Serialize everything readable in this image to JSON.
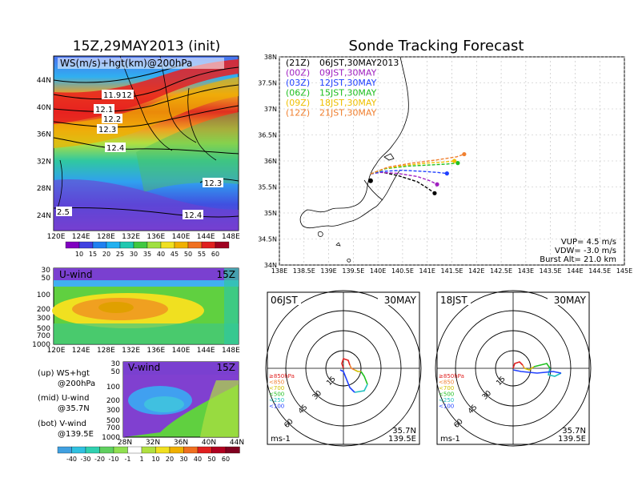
{
  "left_title": "15Z,29MAY2013 (init)",
  "right_title": "Sonde Tracking Forecast",
  "map": {
    "label": "WS(m/s)+hgt(km)@200hPa",
    "lat_ticks": [
      "44N",
      "40N",
      "36N",
      "32N",
      "28N",
      "24N"
    ],
    "lon_ticks": [
      "120E",
      "124E",
      "128E",
      "132E",
      "136E",
      "140E",
      "144E",
      "148E"
    ],
    "contour_labels": [
      "11.9",
      "12",
      "12.1",
      "12.2",
      "12.3",
      "12.4",
      "12.3",
      "12.4",
      "2.5"
    ],
    "colorbar": [
      "10",
      "15",
      "20",
      "25",
      "30",
      "35",
      "40",
      "45",
      "50",
      "55",
      "60"
    ]
  },
  "uwind": {
    "label": "U-wind",
    "time": "15Z",
    "p_ticks": [
      "30",
      "50",
      "100",
      "200",
      "300",
      "500",
      "700",
      "1000"
    ],
    "lon_ticks": [
      "120E",
      "124E",
      "128E",
      "132E",
      "136E",
      "140E",
      "144E",
      "148E"
    ]
  },
  "vwind": {
    "label": "V-wind",
    "time": "15Z",
    "p_ticks": [
      "30",
      "50",
      "100",
      "200",
      "300",
      "500",
      "700",
      "1000"
    ],
    "lat_ticks": [
      "28N",
      "32N",
      "36N",
      "40N",
      "44N"
    ]
  },
  "notes": {
    "up": "(up) WS+hgt",
    "up2": "@200hPa",
    "mid": "(mid) U-wind",
    "mid2": "@35.7N",
    "bot": "(bot) V-wind",
    "bot2": "@139.5E"
  },
  "wind_colorbar": [
    "-40",
    "-30",
    "-20",
    "-10",
    "-1",
    "1",
    "10",
    "20",
    "30",
    "40",
    "50",
    "60"
  ],
  "track": {
    "lat_ticks": [
      "38N",
      "37.5N",
      "37N",
      "36.5N",
      "36N",
      "35.5N",
      "35N",
      "34.5N",
      "34N"
    ],
    "lon_ticks": [
      "138E",
      "138.5E",
      "139E",
      "139.5E",
      "140E",
      "140.5E",
      "141E",
      "141.5E",
      "142E",
      "142.5E",
      "143E",
      "143.5E",
      "144E",
      "144.5E",
      "145E"
    ],
    "legend": [
      {
        "code": "(21Z)",
        "time": "06JST,30MAY2013",
        "color": "#000000"
      },
      {
        "code": "(00Z)",
        "time": "09JST,30MAY",
        "color": "#a020c0"
      },
      {
        "code": "(03Z)",
        "time": "12JST,30MAY",
        "color": "#2040ff"
      },
      {
        "code": "(06Z)",
        "time": "15JST,30MAY",
        "color": "#20c020"
      },
      {
        "code": "(09Z)",
        "time": "18JST,30MAY",
        "color": "#f0c000"
      },
      {
        "code": "(12Z)",
        "time": "21JST,30MAY",
        "color": "#f08030"
      }
    ],
    "vup": "VUP= 4.5 m/s",
    "vdw": "VDW= -3.0 m/s",
    "burst": "Burst Alt= 21.0 km"
  },
  "hodo_left": {
    "time": "06JST",
    "date": "30MAY",
    "lat": "35.7N",
    "lon": "139.5E",
    "unit": "ms-1",
    "ring_labels": [
      "15",
      "30",
      "45",
      "60"
    ]
  },
  "hodo_right": {
    "time": "18JST",
    "date": "30MAY",
    "lat": "35.7N",
    "lon": "139.5E",
    "unit": "ms-1",
    "ring_labels": [
      "15",
      "30",
      "45",
      "60"
    ]
  },
  "hodo_legend": [
    {
      "label": "≥850hPa",
      "color": "#e02020"
    },
    {
      "label": "<850",
      "color": "#f08030"
    },
    {
      "label": "<700",
      "color": "#d0c000"
    },
    {
      "label": "<500",
      "color": "#20c020"
    },
    {
      "label": "<250",
      "color": "#20c0c0"
    },
    {
      "label": "<100",
      "color": "#2040ff"
    }
  ],
  "chart_data": [
    {
      "type": "line",
      "title": "Sonde Tracking Forecast",
      "xlabel": "",
      "ylabel": "",
      "xlim": [
        138.0,
        145.0
      ],
      "ylim": [
        34.0,
        38.0
      ],
      "series": [
        {
          "name": "(21Z) 06JST,30MAY2013",
          "x": [
            139.85,
            140.0,
            140.4,
            140.8,
            141.0,
            141.15
          ],
          "y": [
            35.75,
            35.8,
            35.72,
            35.6,
            35.48,
            35.38
          ]
        },
        {
          "name": "(00Z) 09JST,30MAY",
          "x": [
            139.85,
            140.05,
            140.4,
            140.8,
            141.05,
            141.2
          ],
          "y": [
            35.75,
            35.78,
            35.76,
            35.7,
            35.62,
            35.55
          ]
        },
        {
          "name": "(03Z) 12JST,30MAY",
          "x": [
            139.85,
            140.1,
            140.5,
            140.9,
            141.2,
            141.4
          ],
          "y": [
            35.75,
            35.8,
            35.82,
            35.8,
            35.78,
            35.76
          ]
        },
        {
          "name": "(06Z) 15JST,30MAY",
          "x": [
            139.85,
            140.15,
            140.6,
            141.0,
            141.4,
            141.62
          ],
          "y": [
            35.75,
            35.85,
            35.9,
            35.92,
            35.94,
            35.96
          ]
        },
        {
          "name": "(09Z) 18JST,30MAY",
          "x": [
            139.85,
            140.15,
            140.6,
            141.0,
            141.35,
            141.55
          ],
          "y": [
            35.75,
            35.86,
            35.92,
            35.96,
            35.98,
            36.0
          ]
        },
        {
          "name": "(12Z) 21JST,30MAY",
          "x": [
            139.85,
            140.2,
            140.7,
            141.2,
            141.6,
            141.75
          ],
          "y": [
            35.75,
            35.88,
            35.96,
            36.02,
            36.08,
            36.13
          ]
        }
      ]
    }
  ]
}
